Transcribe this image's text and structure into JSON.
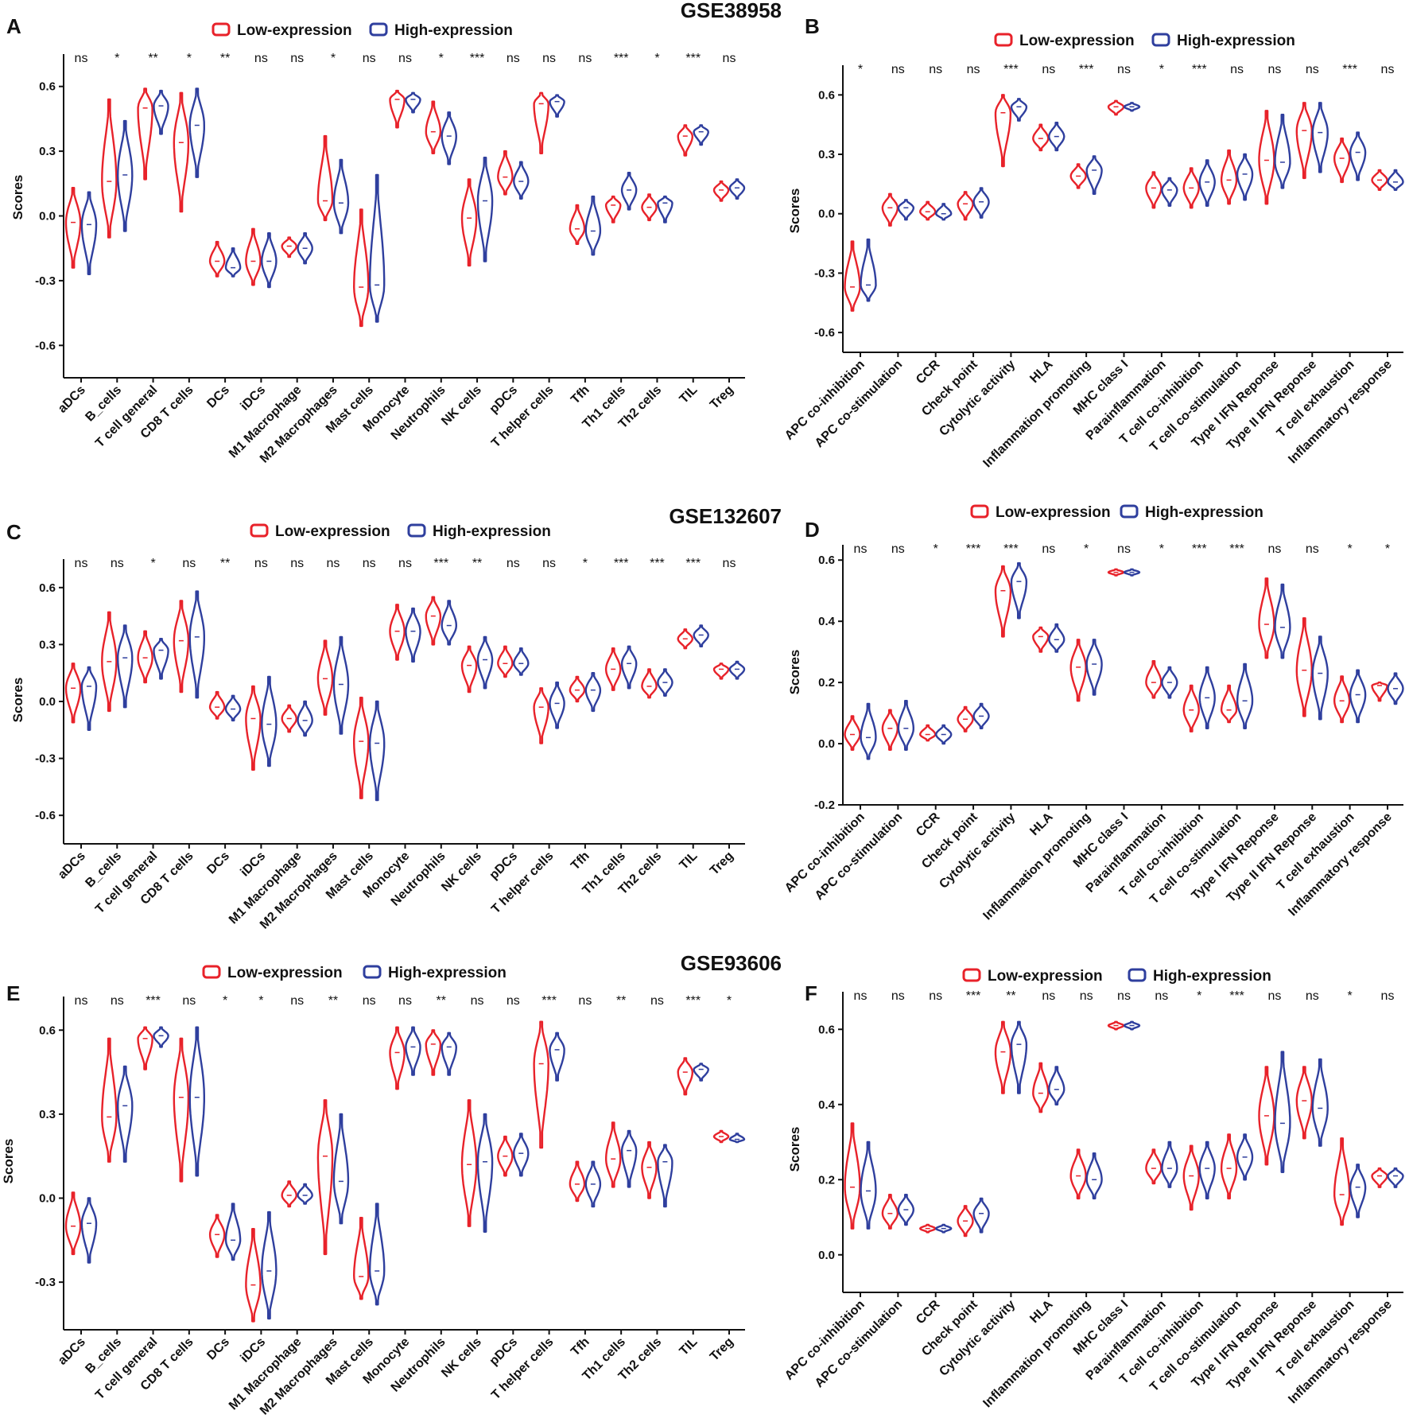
{
  "colors": {
    "low": "#e8222a",
    "high": "#2f3f9e",
    "axis": "#111111"
  },
  "legend": {
    "low": "Low-expression",
    "high": "High-expression"
  },
  "chart_data": [
    {
      "panel": "A",
      "dataset": "GSE38958",
      "type": "violin",
      "ylabel": "Scores",
      "ylim": [
        -0.75,
        0.75
      ],
      "yticks": [
        -0.6,
        -0.3,
        0.0,
        0.3,
        0.6
      ],
      "ytick_labels": [
        "-0.6",
        "-0.3",
        "0.0",
        "0.3",
        "0.6"
      ],
      "categories": [
        "aDCs",
        "B_cells",
        "T cell general",
        "CD8 T cells",
        "DCs",
        "iDCs",
        "M1 Macrophage",
        "M2 Macrophages",
        "Mast cells",
        "Monocyte",
        "Neutrophils",
        "NK cells",
        "pDCs",
        "T helper cells",
        "Tfh",
        "Th1 cells",
        "Th2 cells",
        "TIL",
        "Treg"
      ],
      "significance": [
        "ns",
        "*",
        "**",
        "*",
        "**",
        "ns",
        "ns",
        "*",
        "ns",
        "ns",
        "*",
        "***",
        "ns",
        "ns",
        "ns",
        "***",
        "*",
        "***",
        "ns"
      ],
      "series": [
        {
          "name": "Low-expression",
          "min": [
            -0.24,
            -0.1,
            0.17,
            0.02,
            -0.28,
            -0.32,
            -0.19,
            -0.02,
            -0.51,
            0.41,
            0.29,
            -0.23,
            0.1,
            0.29,
            -0.13,
            -0.03,
            -0.02,
            0.28,
            0.07
          ],
          "max": [
            0.13,
            0.54,
            0.59,
            0.57,
            -0.12,
            -0.06,
            -0.1,
            0.37,
            0.03,
            0.58,
            0.53,
            0.17,
            0.3,
            0.57,
            0.05,
            0.09,
            0.1,
            0.42,
            0.16
          ],
          "median": [
            -0.03,
            0.16,
            0.5,
            0.34,
            -0.21,
            -0.21,
            -0.14,
            0.07,
            -0.33,
            0.54,
            0.39,
            -0.01,
            0.18,
            0.52,
            -0.06,
            0.05,
            0.04,
            0.37,
            0.12
          ]
        },
        {
          "name": "High-expression",
          "min": [
            -0.27,
            -0.07,
            0.38,
            0.18,
            -0.28,
            -0.33,
            -0.22,
            -0.08,
            -0.49,
            0.48,
            0.24,
            -0.21,
            0.08,
            0.46,
            -0.18,
            0.03,
            -0.03,
            0.33,
            0.08
          ],
          "max": [
            0.11,
            0.44,
            0.58,
            0.59,
            -0.15,
            -0.08,
            -0.08,
            0.26,
            0.19,
            0.57,
            0.48,
            0.27,
            0.25,
            0.56,
            0.09,
            0.2,
            0.09,
            0.42,
            0.17
          ],
          "median": [
            -0.04,
            0.19,
            0.51,
            0.42,
            -0.24,
            -0.21,
            -0.15,
            0.06,
            -0.32,
            0.54,
            0.37,
            0.07,
            0.16,
            0.53,
            -0.07,
            0.12,
            0.06,
            0.39,
            0.13
          ]
        }
      ]
    },
    {
      "panel": "B",
      "dataset": "",
      "type": "violin",
      "ylabel": "Scores",
      "ylim": [
        -0.7,
        0.75
      ],
      "yticks": [
        -0.6,
        -0.3,
        0.0,
        0.3,
        0.6
      ],
      "ytick_labels": [
        "-0.6",
        "-0.3",
        "0.0",
        "0.3",
        "0.6"
      ],
      "categories": [
        "APC co-inhibition",
        "APC co-stimulation",
        "CCR",
        "Check point",
        "Cytolytic activity",
        "HLA",
        "Inflammation promoting",
        "MHC class I",
        "Parainflammation",
        "T cell co-inhibition",
        "T cell co-stimulation",
        "Type I IFN Reponse",
        "Type II IFN Reponse",
        "T cell exhaustion",
        "Inflammatory response"
      ],
      "significance": [
        "*",
        "ns",
        "ns",
        "ns",
        "***",
        "ns",
        "***",
        "ns",
        "*",
        "***",
        "ns",
        "ns",
        "ns",
        "***",
        "ns"
      ],
      "series": [
        {
          "name": "Low-expression",
          "min": [
            -0.49,
            -0.06,
            -0.03,
            -0.03,
            0.24,
            0.32,
            0.13,
            0.5,
            0.03,
            0.03,
            0.05,
            0.05,
            0.18,
            0.16,
            0.12
          ],
          "max": [
            -0.14,
            0.1,
            0.06,
            0.11,
            0.6,
            0.45,
            0.25,
            0.57,
            0.21,
            0.23,
            0.32,
            0.52,
            0.56,
            0.38,
            0.22
          ],
          "median": [
            -0.37,
            0.03,
            0.01,
            0.05,
            0.51,
            0.38,
            0.19,
            0.54,
            0.13,
            0.13,
            0.17,
            0.27,
            0.42,
            0.28,
            0.17
          ]
        },
        {
          "name": "High-expression",
          "min": [
            -0.44,
            -0.03,
            -0.03,
            -0.02,
            0.47,
            0.32,
            0.1,
            0.52,
            0.04,
            0.04,
            0.07,
            0.13,
            0.21,
            0.17,
            0.12
          ],
          "max": [
            -0.13,
            0.07,
            0.05,
            0.13,
            0.58,
            0.46,
            0.29,
            0.56,
            0.18,
            0.27,
            0.3,
            0.5,
            0.56,
            0.41,
            0.22
          ],
          "median": [
            -0.36,
            0.03,
            0.0,
            0.06,
            0.54,
            0.39,
            0.22,
            0.54,
            0.12,
            0.16,
            0.2,
            0.26,
            0.41,
            0.31,
            0.16
          ]
        }
      ]
    },
    {
      "panel": "C",
      "dataset": "GSE132607",
      "type": "violin",
      "ylabel": "Scores",
      "ylim": [
        -0.75,
        0.75
      ],
      "yticks": [
        -0.6,
        -0.3,
        0.0,
        0.3,
        0.6
      ],
      "ytick_labels": [
        "-0.6",
        "-0.3",
        "0.0",
        "0.3",
        "0.6"
      ],
      "categories": [
        "aDCs",
        "B_cells",
        "T cell general",
        "CD8 T cells",
        "DCs",
        "iDCs",
        "M1 Macrophage",
        "M2 Macrophages",
        "Mast cells",
        "Monocyte",
        "Neutrophils",
        "NK cells",
        "pDCs",
        "T helper cells",
        "Tfh",
        "Th1 cells",
        "Th2 cells",
        "TIL",
        "Treg"
      ],
      "significance": [
        "ns",
        "ns",
        "*",
        "ns",
        "**",
        "ns",
        "ns",
        "ns",
        "ns",
        "ns",
        "***",
        "**",
        "ns",
        "ns",
        "*",
        "***",
        "***",
        "***",
        "ns"
      ],
      "series": [
        {
          "name": "Low-expression",
          "min": [
            -0.11,
            -0.05,
            0.1,
            0.05,
            -0.09,
            -0.36,
            -0.16,
            -0.07,
            -0.51,
            0.22,
            0.3,
            0.05,
            0.13,
            -0.22,
            0.0,
            0.06,
            0.02,
            0.28,
            0.12
          ],
          "max": [
            0.2,
            0.47,
            0.37,
            0.53,
            0.05,
            0.08,
            -0.02,
            0.32,
            0.02,
            0.51,
            0.55,
            0.29,
            0.29,
            0.07,
            0.13,
            0.28,
            0.17,
            0.38,
            0.2
          ],
          "median": [
            0.07,
            0.21,
            0.23,
            0.32,
            -0.03,
            -0.09,
            -0.09,
            0.12,
            -0.21,
            0.37,
            0.45,
            0.19,
            0.2,
            -0.03,
            0.06,
            0.17,
            0.08,
            0.33,
            0.17
          ]
        },
        {
          "name": "High-expression",
          "min": [
            -0.15,
            -0.03,
            0.12,
            0.02,
            -0.1,
            -0.34,
            -0.18,
            -0.17,
            -0.52,
            0.21,
            0.3,
            0.07,
            0.14,
            -0.14,
            -0.05,
            0.07,
            0.03,
            0.29,
            0.12
          ],
          "max": [
            0.18,
            0.4,
            0.33,
            0.58,
            0.03,
            0.13,
            0.0,
            0.34,
            0.0,
            0.49,
            0.53,
            0.34,
            0.28,
            0.1,
            0.15,
            0.29,
            0.17,
            0.4,
            0.21
          ],
          "median": [
            0.08,
            0.23,
            0.27,
            0.34,
            -0.04,
            -0.12,
            -0.1,
            0.09,
            -0.22,
            0.37,
            0.4,
            0.22,
            0.2,
            -0.01,
            0.06,
            0.2,
            0.1,
            0.35,
            0.17
          ]
        }
      ]
    },
    {
      "panel": "D",
      "dataset": "",
      "type": "violin",
      "ylabel": "Scores",
      "ylim": [
        -0.2,
        0.65
      ],
      "yticks": [
        -0.2,
        0.0,
        0.2,
        0.4,
        0.6
      ],
      "ytick_labels": [
        "-0.2",
        "0.0",
        "0.2",
        "0.4",
        "0.6"
      ],
      "categories": [
        "APC co-inhibition",
        "APC co-stimulation",
        "CCR",
        "Check point",
        "Cytolytic activity",
        "HLA",
        "Inflammation promoting",
        "MHC class I",
        "Parainflammation",
        "T cell co-inhibition",
        "T cell co-stimulation",
        "Type I IFN Reponse",
        "Type II IFN Reponse",
        "T cell exhaustion",
        "Inflammatory response"
      ],
      "significance": [
        "ns",
        "ns",
        "*",
        "***",
        "***",
        "ns",
        "*",
        "ns",
        "*",
        "***",
        "***",
        "ns",
        "ns",
        "*",
        "*"
      ],
      "series": [
        {
          "name": "Low-expression",
          "min": [
            -0.02,
            -0.02,
            0.01,
            0.04,
            0.35,
            0.3,
            0.14,
            0.55,
            0.15,
            0.04,
            0.07,
            0.28,
            0.09,
            0.07,
            0.14
          ],
          "max": [
            0.09,
            0.11,
            0.06,
            0.12,
            0.58,
            0.38,
            0.34,
            0.57,
            0.27,
            0.19,
            0.19,
            0.54,
            0.41,
            0.22,
            0.2
          ],
          "median": [
            0.03,
            0.05,
            0.03,
            0.08,
            0.5,
            0.35,
            0.25,
            0.56,
            0.2,
            0.11,
            0.11,
            0.39,
            0.24,
            0.14,
            0.19
          ]
        },
        {
          "name": "High-expression",
          "min": [
            -0.05,
            -0.02,
            0.0,
            0.05,
            0.41,
            0.3,
            0.16,
            0.55,
            0.15,
            0.05,
            0.05,
            0.28,
            0.08,
            0.07,
            0.13
          ],
          "max": [
            0.13,
            0.14,
            0.06,
            0.13,
            0.59,
            0.39,
            0.34,
            0.57,
            0.25,
            0.25,
            0.26,
            0.52,
            0.35,
            0.24,
            0.23
          ],
          "median": [
            0.02,
            0.05,
            0.03,
            0.09,
            0.53,
            0.34,
            0.26,
            0.56,
            0.2,
            0.15,
            0.14,
            0.38,
            0.23,
            0.16,
            0.18
          ]
        }
      ]
    },
    {
      "panel": "E",
      "dataset": "GSE93606",
      "type": "violin",
      "ylabel": "Scores",
      "ylim": [
        -0.47,
        0.72
      ],
      "yticks": [
        -0.3,
        0.0,
        0.3,
        0.6
      ],
      "ytick_labels": [
        "-0.3",
        "0.0",
        "0.3",
        "0.6"
      ],
      "categories": [
        "aDCs",
        "B_cells",
        "T cell general",
        "CD8 T cells",
        "DCs",
        "iDCs",
        "M1 Macrophage",
        "M2 Macrophages",
        "Mast cells",
        "Monocyte",
        "Neutrophils",
        "NK cells",
        "pDCs",
        "T helper cells",
        "Tfh",
        "Th1 cells",
        "Th2 cells",
        "TIL",
        "Treg"
      ],
      "significance": [
        "ns",
        "ns",
        "***",
        "ns",
        "*",
        "*",
        "ns",
        "**",
        "ns",
        "ns",
        "**",
        "ns",
        "ns",
        "***",
        "ns",
        "**",
        "ns",
        "***",
        "*"
      ],
      "series": [
        {
          "name": "Low-expression",
          "min": [
            -0.2,
            0.13,
            0.46,
            0.06,
            -0.21,
            -0.44,
            -0.03,
            -0.2,
            -0.36,
            0.39,
            0.44,
            -0.1,
            0.08,
            0.18,
            -0.01,
            0.04,
            0.0,
            0.37,
            0.2
          ],
          "max": [
            0.02,
            0.57,
            0.61,
            0.57,
            -0.06,
            -0.11,
            0.06,
            0.35,
            -0.07,
            0.61,
            0.6,
            0.35,
            0.22,
            0.63,
            0.13,
            0.27,
            0.2,
            0.5,
            0.24
          ],
          "median": [
            -0.1,
            0.29,
            0.57,
            0.36,
            -0.13,
            -0.31,
            0.01,
            0.15,
            -0.28,
            0.52,
            0.55,
            0.12,
            0.15,
            0.48,
            0.05,
            0.14,
            0.11,
            0.45,
            0.22
          ]
        },
        {
          "name": "High-expression",
          "min": [
            -0.23,
            0.13,
            0.54,
            0.08,
            -0.22,
            -0.43,
            -0.02,
            -0.09,
            -0.38,
            0.44,
            0.44,
            -0.12,
            0.08,
            0.42,
            -0.03,
            0.04,
            -0.03,
            0.42,
            0.2
          ],
          "max": [
            0.0,
            0.47,
            0.61,
            0.61,
            -0.02,
            -0.05,
            0.05,
            0.3,
            -0.02,
            0.61,
            0.59,
            0.3,
            0.23,
            0.59,
            0.13,
            0.24,
            0.19,
            0.48,
            0.23
          ],
          "median": [
            -0.09,
            0.33,
            0.58,
            0.36,
            -0.15,
            -0.26,
            0.01,
            0.06,
            -0.26,
            0.54,
            0.54,
            0.13,
            0.16,
            0.53,
            0.05,
            0.17,
            0.13,
            0.46,
            0.21
          ]
        }
      ]
    },
    {
      "panel": "F",
      "dataset": "",
      "type": "violin",
      "ylabel": "Scores",
      "ylim": [
        -0.1,
        0.7
      ],
      "yticks": [
        0.0,
        0.2,
        0.4,
        0.6
      ],
      "ytick_labels": [
        "0.0",
        "0.2",
        "0.4",
        "0.6"
      ],
      "categories": [
        "APC co-inhibition",
        "APC co-stimulation",
        "CCR",
        "Check point",
        "Cytolytic activity",
        "HLA",
        "Inflammation promoting",
        "MHC class I",
        "Parainflammation",
        "T cell co-inhibition",
        "T cell co-stimulation",
        "Type I IFN Reponse",
        "Type II IFN Reponse",
        "T cell exhaustion",
        "Inflammatory response"
      ],
      "significance": [
        "ns",
        "ns",
        "ns",
        "***",
        "**",
        "ns",
        "ns",
        "ns",
        "ns",
        "*",
        "***",
        "ns",
        "ns",
        "*",
        "ns"
      ],
      "series": [
        {
          "name": "Low-expression",
          "min": [
            0.07,
            0.07,
            0.06,
            0.05,
            0.43,
            0.38,
            0.15,
            0.6,
            0.19,
            0.12,
            0.15,
            0.24,
            0.31,
            0.08,
            0.18
          ],
          "max": [
            0.35,
            0.16,
            0.08,
            0.13,
            0.62,
            0.51,
            0.28,
            0.62,
            0.28,
            0.29,
            0.32,
            0.5,
            0.5,
            0.31,
            0.23
          ],
          "median": [
            0.18,
            0.11,
            0.07,
            0.09,
            0.54,
            0.43,
            0.21,
            0.61,
            0.23,
            0.21,
            0.23,
            0.37,
            0.41,
            0.16,
            0.21
          ]
        },
        {
          "name": "High-expression",
          "min": [
            0.07,
            0.08,
            0.06,
            0.06,
            0.43,
            0.4,
            0.15,
            0.6,
            0.18,
            0.15,
            0.2,
            0.22,
            0.29,
            0.1,
            0.18
          ],
          "max": [
            0.3,
            0.16,
            0.08,
            0.15,
            0.62,
            0.5,
            0.27,
            0.62,
            0.3,
            0.3,
            0.32,
            0.54,
            0.52,
            0.24,
            0.23
          ],
          "median": [
            0.17,
            0.12,
            0.07,
            0.11,
            0.56,
            0.44,
            0.2,
            0.61,
            0.23,
            0.23,
            0.26,
            0.35,
            0.39,
            0.18,
            0.21
          ]
        }
      ]
    }
  ]
}
